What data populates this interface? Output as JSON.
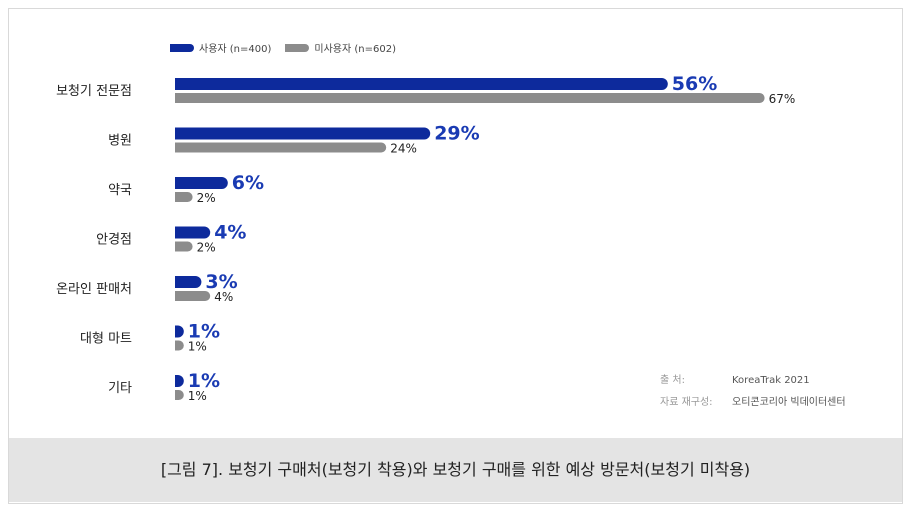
{
  "legend": {
    "user_label": "사용자 (n=400)",
    "nonuser_label": "미사용자 (n=602)"
  },
  "colors": {
    "user": "#0d2a9c",
    "nonuser": "#8c8c8c",
    "user_label": "#1a3bb3"
  },
  "chart_data": {
    "type": "bar",
    "orientation": "horizontal",
    "categories": [
      "보청기 전문점",
      "병원",
      "약국",
      "안경점",
      "온라인 판매처",
      "대형 마트",
      "기타"
    ],
    "series": [
      {
        "name": "사용자 (n=400)",
        "values": [
          56,
          29,
          6,
          4,
          3,
          1,
          1
        ]
      },
      {
        "name": "미사용자 (n=602)",
        "values": [
          67,
          24,
          2,
          2,
          4,
          1,
          1
        ]
      }
    ],
    "value_suffix": "%",
    "grid": false,
    "legend_position": "top-left"
  },
  "source": {
    "source_key": "출      처:",
    "source_val": "KoreaTrak 2021",
    "recon_key": "자료 재구성:",
    "recon_val": "오티콘코리아 빅데이터센터"
  },
  "caption": "[그림 7]. 보청기 구매처(보청기 착용)와 보청기 구매를 위한 예상 방문처(보청기 미착용)"
}
